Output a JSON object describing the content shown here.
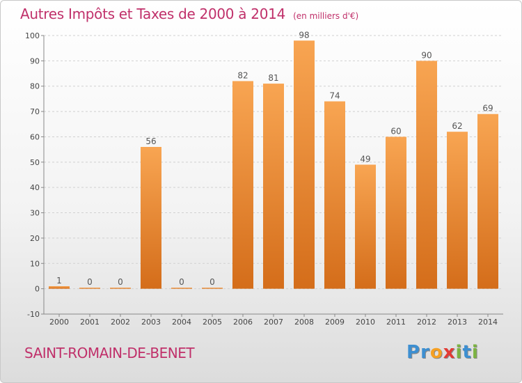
{
  "header": {
    "title": "Autres Impôts et Taxes de 2000 à 2014",
    "unit": "(en milliers d'€)"
  },
  "footer": {
    "city": "SAINT-ROMAIN-DE-BENET",
    "logo": "Proxiti"
  },
  "colors": {
    "title": "#c0306a",
    "bar_light": "#f8a552",
    "bar_dark": "#d46d1a",
    "grid": "#d0d0d0",
    "axis": "#888888"
  },
  "logo_letters": [
    {
      "char": "P",
      "color": "#3d8fd1"
    },
    {
      "char": "r",
      "color": "#3d8fd1"
    },
    {
      "char": "o",
      "color": "#f5a023"
    },
    {
      "char": "x",
      "color": "#e23b35"
    },
    {
      "char": "i",
      "color": "#7cb342"
    },
    {
      "char": "t",
      "color": "#3d8fd1"
    },
    {
      "char": "i",
      "color": "#7cb342"
    }
  ],
  "chart_data": {
    "type": "bar",
    "title": "Autres Impôts et Taxes de 2000 à 2014",
    "subtitle": "(en milliers d'€)",
    "xlabel": "",
    "ylabel": "",
    "categories": [
      "2000",
      "2001",
      "2002",
      "2003",
      "2004",
      "2005",
      "2006",
      "2007",
      "2008",
      "2009",
      "2010",
      "2011",
      "2012",
      "2013",
      "2014"
    ],
    "values": [
      1,
      0,
      0,
      56,
      0,
      0,
      82,
      81,
      98,
      74,
      49,
      60,
      90,
      62,
      69
    ],
    "ylim": [
      -10,
      100
    ],
    "yticks": [
      -10,
      0,
      10,
      20,
      30,
      40,
      50,
      60,
      70,
      80,
      90,
      100
    ],
    "grid": true,
    "legend": "none"
  }
}
